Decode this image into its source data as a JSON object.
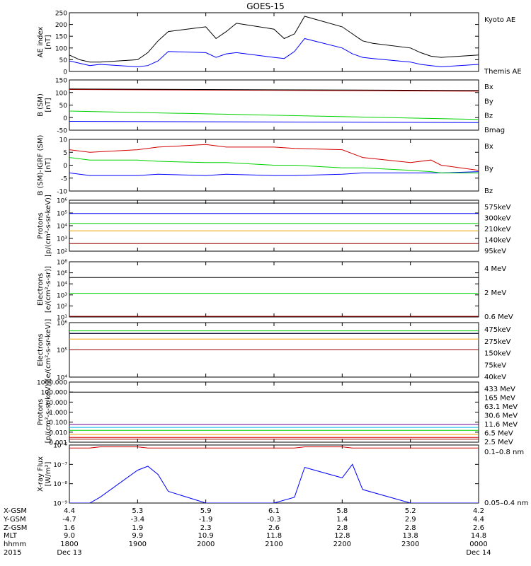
{
  "title": "GOES-15",
  "colors": {
    "black": "#000000",
    "blue": "#0000ff",
    "green": "#00d200",
    "red": "#d20000",
    "orange": "#f0a000",
    "darkred": "#9b0000",
    "cyan": "#00b4e6",
    "purple": "#6e0096"
  },
  "chart_data": [
    {
      "type": "line",
      "id": "ae",
      "ylabel": "AE index\n[nT]",
      "ylim": [
        0,
        250
      ],
      "yticks": [
        "0",
        "50",
        "100",
        "150",
        "200",
        "250"
      ],
      "x": [
        1800,
        1815,
        1830,
        1845,
        1900,
        1915,
        1930,
        1945,
        2000,
        2015,
        2030,
        2045,
        2100,
        2115,
        2130,
        2145,
        2200,
        2215,
        2230,
        2245,
        2300,
        2315,
        2330,
        2345,
        2400
      ],
      "series": [
        {
          "name": "Kyoto AE",
          "color": "blue",
          "legend_color": "blue",
          "values": [
            45,
            35,
            25,
            30,
            20,
            25,
            45,
            85,
            80,
            60,
            75,
            80,
            60,
            55,
            85,
            140,
            100,
            75,
            60,
            55,
            40,
            30,
            25,
            20,
            30
          ]
        },
        {
          "name": "Themis AE",
          "color": "black",
          "legend_color": "black",
          "values": [
            70,
            50,
            40,
            40,
            50,
            80,
            130,
            170,
            190,
            140,
            170,
            205,
            180,
            140,
            160,
            235,
            190,
            160,
            130,
            120,
            100,
            80,
            65,
            60,
            70
          ]
        }
      ]
    },
    {
      "type": "line",
      "id": "bsm",
      "ylabel": "B (SM)\n[nT]",
      "ylim": [
        -60,
        150
      ],
      "yticks": [
        "-50",
        "0",
        "50",
        "100",
        "150"
      ],
      "x": [
        1800,
        2400
      ],
      "series": [
        {
          "name": "Bx",
          "color": "blue",
          "legend_color": "blue",
          "values": [
            -23,
            -28
          ]
        },
        {
          "name": "By",
          "color": "green",
          "legend_color": "green",
          "values": [
            20,
            -15
          ]
        },
        {
          "name": "Bz",
          "color": "red",
          "legend_color": "red",
          "values": [
            110,
            103
          ]
        },
        {
          "name": "Bmag",
          "color": "black",
          "legend_color": "black",
          "values": [
            112,
            106
          ]
        }
      ]
    },
    {
      "type": "line",
      "id": "bigrf",
      "ylabel": "B (SM)-IGRF (SM)\n[nT]",
      "ylim": [
        -10,
        10
      ],
      "yticks": [
        "-10",
        "-5",
        "0",
        "5",
        "10"
      ],
      "x": [
        1800,
        1830,
        1900,
        1930,
        2000,
        2030,
        2100,
        2130,
        2200,
        2230,
        2300,
        2330,
        2345,
        2400
      ],
      "series": [
        {
          "name": "Bx",
          "color": "blue",
          "legend_color": "blue",
          "values": [
            -3,
            -4,
            -4,
            -3.5,
            -4,
            -3.5,
            -4,
            -4,
            -3.5,
            -3,
            -3,
            -3,
            -3,
            -2.5
          ]
        },
        {
          "name": "By",
          "color": "green",
          "legend_color": "green",
          "values": [
            3,
            2,
            2,
            1.5,
            1,
            1,
            0,
            0,
            -1,
            -1,
            -2,
            -2.5,
            -3,
            -3
          ]
        },
        {
          "name": "Bz",
          "color": "red",
          "legend_color": "red",
          "values": [
            6,
            5,
            6,
            7,
            8,
            7,
            7,
            6.5,
            6,
            3,
            1,
            2,
            0,
            -2
          ]
        }
      ]
    },
    {
      "type": "line",
      "id": "protons_energetic",
      "scale": "log",
      "ylabel": "Protons\n[p/(cm²-s-sr-keV)]",
      "ylim": [
        100,
        1000000
      ],
      "yticks": [
        "10²",
        "10³",
        "10⁴",
        "10⁵",
        "10⁶"
      ],
      "x": [
        1800,
        2400
      ],
      "series": [
        {
          "name": "575keV",
          "color": "black",
          "legend_color": "darkred",
          "values": [
            600000,
            600000
          ]
        },
        {
          "name": "300keV",
          "color": "blue",
          "legend_color": "orange",
          "values": [
            90000,
            90000
          ]
        },
        {
          "name": "210keV",
          "color": "green",
          "legend_color": "green",
          "values": [
            15000,
            15000
          ]
        },
        {
          "name": "140keV",
          "color": "orange",
          "legend_color": "blue",
          "values": [
            4000,
            4000
          ]
        },
        {
          "name": "95keV",
          "color": "darkred",
          "legend_color": "black",
          "values": [
            400,
            400
          ]
        }
      ]
    },
    {
      "type": "line",
      "id": "electrons_high",
      "scale": "log",
      "ylabel": "Electrons\n[e/(cm²-s-sr)]",
      "ylim": [
        10,
        100000000
      ],
      "yticks": [
        "10¹",
        "10²",
        "10³",
        "10⁴",
        "10⁶",
        "10⁸"
      ],
      "x": [
        1800,
        2400
      ],
      "series": [
        {
          "name": "4 MeV",
          "color": "darkred",
          "legend_color": "darkred",
          "values": [
            12,
            12
          ]
        },
        {
          "name": "2 MeV",
          "color": "green",
          "legend_color": "green",
          "values": [
            10000,
            10000
          ]
        },
        {
          "name": "0.6 MeV",
          "color": "black",
          "legend_color": "black",
          "values": [
            1000000,
            1000000
          ]
        }
      ]
    },
    {
      "type": "line",
      "id": "electrons_low",
      "scale": "log",
      "ylabel": "Electrons\n[e/(cm²-s-sr-keV)]",
      "ylim": [
        10000,
        1000000
      ],
      "yticks": [
        "10⁴",
        "10⁵",
        "10⁶"
      ],
      "x": [
        1800,
        2400
      ],
      "series": [
        {
          "name": "475keV",
          "color": "darkred",
          "legend_color": "darkred",
          "values": [
            100000,
            100000
          ]
        },
        {
          "name": "275keV",
          "color": "orange",
          "legend_color": "orange",
          "values": [
            250000,
            250000
          ]
        },
        {
          "name": "150keV",
          "color": "green",
          "legend_color": "green",
          "values": [
            500000,
            500000
          ]
        },
        {
          "name": "75keV",
          "color": "blue",
          "legend_color": "blue",
          "values": [
            400000,
            400000
          ]
        },
        {
          "name": "40keV",
          "color": "black",
          "legend_color": "black",
          "values": [
            400000,
            400000
          ]
        }
      ]
    },
    {
      "type": "line",
      "id": "protons_high",
      "scale": "log",
      "ylabel": "Protons\n[p/(cm²-s-sr-keV)]",
      "ylim": [
        0.001,
        1000
      ],
      "yticks": [
        "0.001",
        "0.010",
        "0.100",
        "1.000",
        "10.000",
        "100.000",
        "1000.000"
      ],
      "x": [
        1800,
        2400
      ],
      "series": [
        {
          "name": "433 MeV",
          "color": "darkred",
          "legend_color": "darkred",
          "values": [
            0.002,
            0.002
          ]
        },
        {
          "name": "165 MeV",
          "color": "red",
          "legend_color": "red",
          "values": [
            0.003,
            0.003
          ]
        },
        {
          "name": "63.1 MeV",
          "color": "orange",
          "legend_color": "orange",
          "values": [
            0.006,
            0.006
          ]
        },
        {
          "name": "30.6 MeV",
          "color": "green",
          "legend_color": "green",
          "values": [
            0.015,
            0.015
          ]
        },
        {
          "name": "11.6 MeV",
          "color": "cyan",
          "legend_color": "cyan",
          "values": [
            0.03,
            0.03
          ]
        },
        {
          "name": "6.5 MeV",
          "color": "purple",
          "legend_color": "purple",
          "values": [
            0.06,
            0.06
          ]
        },
        {
          "name": "2.5 MeV",
          "color": "black",
          "legend_color": "black",
          "values": [
            100,
            100
          ]
        }
      ]
    },
    {
      "type": "line",
      "id": "xray",
      "scale": "log",
      "ylabel": "X-ray Flux\n[W/m²]",
      "ylim": [
        1e-09,
        1e-06
      ],
      "yticks": [
        "10⁻⁹",
        "10⁻⁸",
        "10⁻⁷",
        "10⁻⁶"
      ],
      "x": [
        1800,
        1830,
        1845,
        1900,
        1915,
        1930,
        1945,
        2000,
        2100,
        2130,
        2145,
        2200,
        2215,
        2230,
        2300,
        2400
      ],
      "series": [
        {
          "name": "0.1–0.8 nm",
          "color": "red",
          "legend_color": "red",
          "values": [
            7e-07,
            7e-07,
            8e-07,
            8e-07,
            7e-07,
            7e-07,
            7e-07,
            7e-07,
            7e-07,
            7e-07,
            8e-07,
            8e-07,
            7e-07,
            7e-07,
            7e-07,
            7e-07
          ]
        },
        {
          "name": "0.05–0.4 nm",
          "color": "blue",
          "legend_color": "blue",
          "values": [
            1e-09,
            1e-09,
            2e-09,
            5e-08,
            8e-08,
            3e-08,
            4e-09,
            1e-09,
            1e-09,
            2e-09,
            7e-08,
            2e-08,
            1e-07,
            5e-09,
            1e-09,
            1e-09
          ]
        }
      ]
    }
  ],
  "ephemeris": {
    "labels": [
      "X-GSM",
      "Y-GSM",
      "Z-GSM",
      "MLT",
      "hhmm",
      "2015"
    ],
    "columns": [
      {
        "xgsm": "4.4",
        "ygsm": "-4.7",
        "zgsm": "1.6",
        "mlt": "9.0",
        "hhmm": "1800",
        "date": "Dec 13"
      },
      {
        "xgsm": "5.3",
        "ygsm": "-3.4",
        "zgsm": "1.9",
        "mlt": "9.9",
        "hhmm": "1900",
        "date": ""
      },
      {
        "xgsm": "5.9",
        "ygsm": "-1.9",
        "zgsm": "2.3",
        "mlt": "10.9",
        "hhmm": "2000",
        "date": ""
      },
      {
        "xgsm": "6.1",
        "ygsm": "-0.3",
        "zgsm": "2.6",
        "mlt": "11.8",
        "hhmm": "2100",
        "date": ""
      },
      {
        "xgsm": "5.8",
        "ygsm": "1.4",
        "zgsm": "2.8",
        "mlt": "12.8",
        "hhmm": "2200",
        "date": ""
      },
      {
        "xgsm": "5.2",
        "ygsm": "2.9",
        "zgsm": "2.8",
        "mlt": "13.8",
        "hhmm": "2300",
        "date": ""
      },
      {
        "xgsm": "4.2",
        "ygsm": "4.4",
        "zgsm": "2.6",
        "mlt": "14.8",
        "hhmm": "0000",
        "date": "Dec 14"
      }
    ]
  }
}
